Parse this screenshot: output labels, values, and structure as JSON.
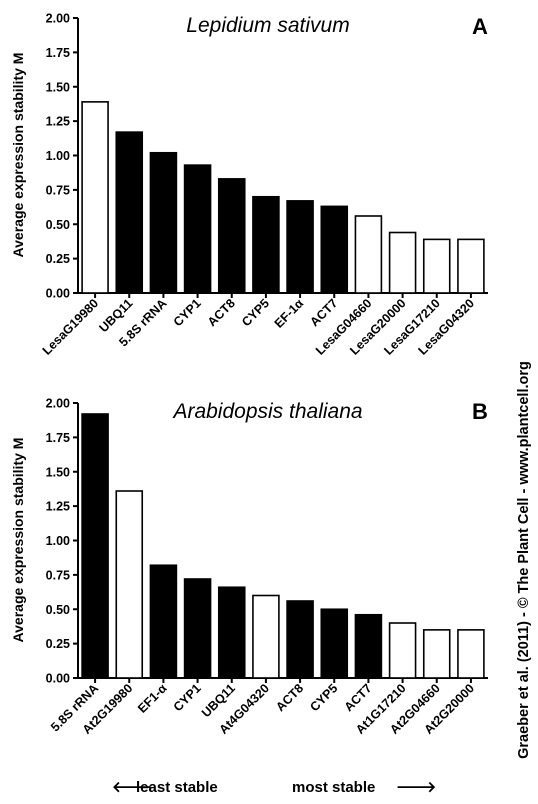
{
  "chart_data": [
    {
      "type": "bar",
      "title": "Lepidium sativum",
      "panel_letter": "A",
      "ylabel": "Average expression stability M",
      "ylim": [
        0,
        2.0
      ],
      "yticks": [
        "0.00",
        "0.25",
        "0.50",
        "0.75",
        "1.00",
        "1.25",
        "1.50",
        "1.75",
        "2.00"
      ],
      "grid": false,
      "categories": [
        "LesaG19980",
        "UBQ11",
        "5.8S rRNA",
        "CYP1",
        "ACT8",
        "CYP5",
        "EF-1α",
        "ACT7",
        "LesaG04660",
        "LesaG20000",
        "LesaG17210",
        "LesaG04320"
      ],
      "values": [
        1.39,
        1.17,
        1.02,
        0.93,
        0.83,
        0.7,
        0.67,
        0.63,
        0.56,
        0.44,
        0.39,
        0.39
      ],
      "bar_fills": [
        "open",
        "filled",
        "filled",
        "filled",
        "filled",
        "filled",
        "filled",
        "filled",
        "open",
        "open",
        "open",
        "open"
      ]
    },
    {
      "type": "bar",
      "title": "Arabidopsis thaliana",
      "panel_letter": "B",
      "ylabel": "Average expression stability M",
      "ylim": [
        0,
        2.0
      ],
      "yticks": [
        "0.00",
        "0.25",
        "0.50",
        "0.75",
        "1.00",
        "1.25",
        "1.50",
        "1.75",
        "2.00"
      ],
      "grid": false,
      "categories": [
        "5.8S rRNA",
        "At2G19980",
        "EF1-α",
        "CYP1",
        "UBQ11",
        "At4G04320",
        "ACT8",
        "CYP5",
        "ACT7",
        "At1G17210",
        "At2G04660",
        "At2G20000"
      ],
      "values": [
        1.92,
        1.36,
        0.82,
        0.72,
        0.66,
        0.6,
        0.56,
        0.5,
        0.46,
        0.4,
        0.35,
        0.35
      ],
      "bar_fills": [
        "filled",
        "open",
        "filled",
        "filled",
        "filled",
        "open",
        "filled",
        "filled",
        "filled",
        "open",
        "open",
        "open"
      ]
    }
  ],
  "footer": {
    "least_stable": "least stable",
    "most_stable": "most stable",
    "left_arrow": "🡐",
    "right_arrow": "🡒"
  },
  "credit": "Graeber et al. (2011) - © The Plant Cell - www.plantcell.org",
  "colors": {
    "filled_bar": "#000000",
    "open_bar": "#ffffff",
    "stroke": "#000000"
  }
}
